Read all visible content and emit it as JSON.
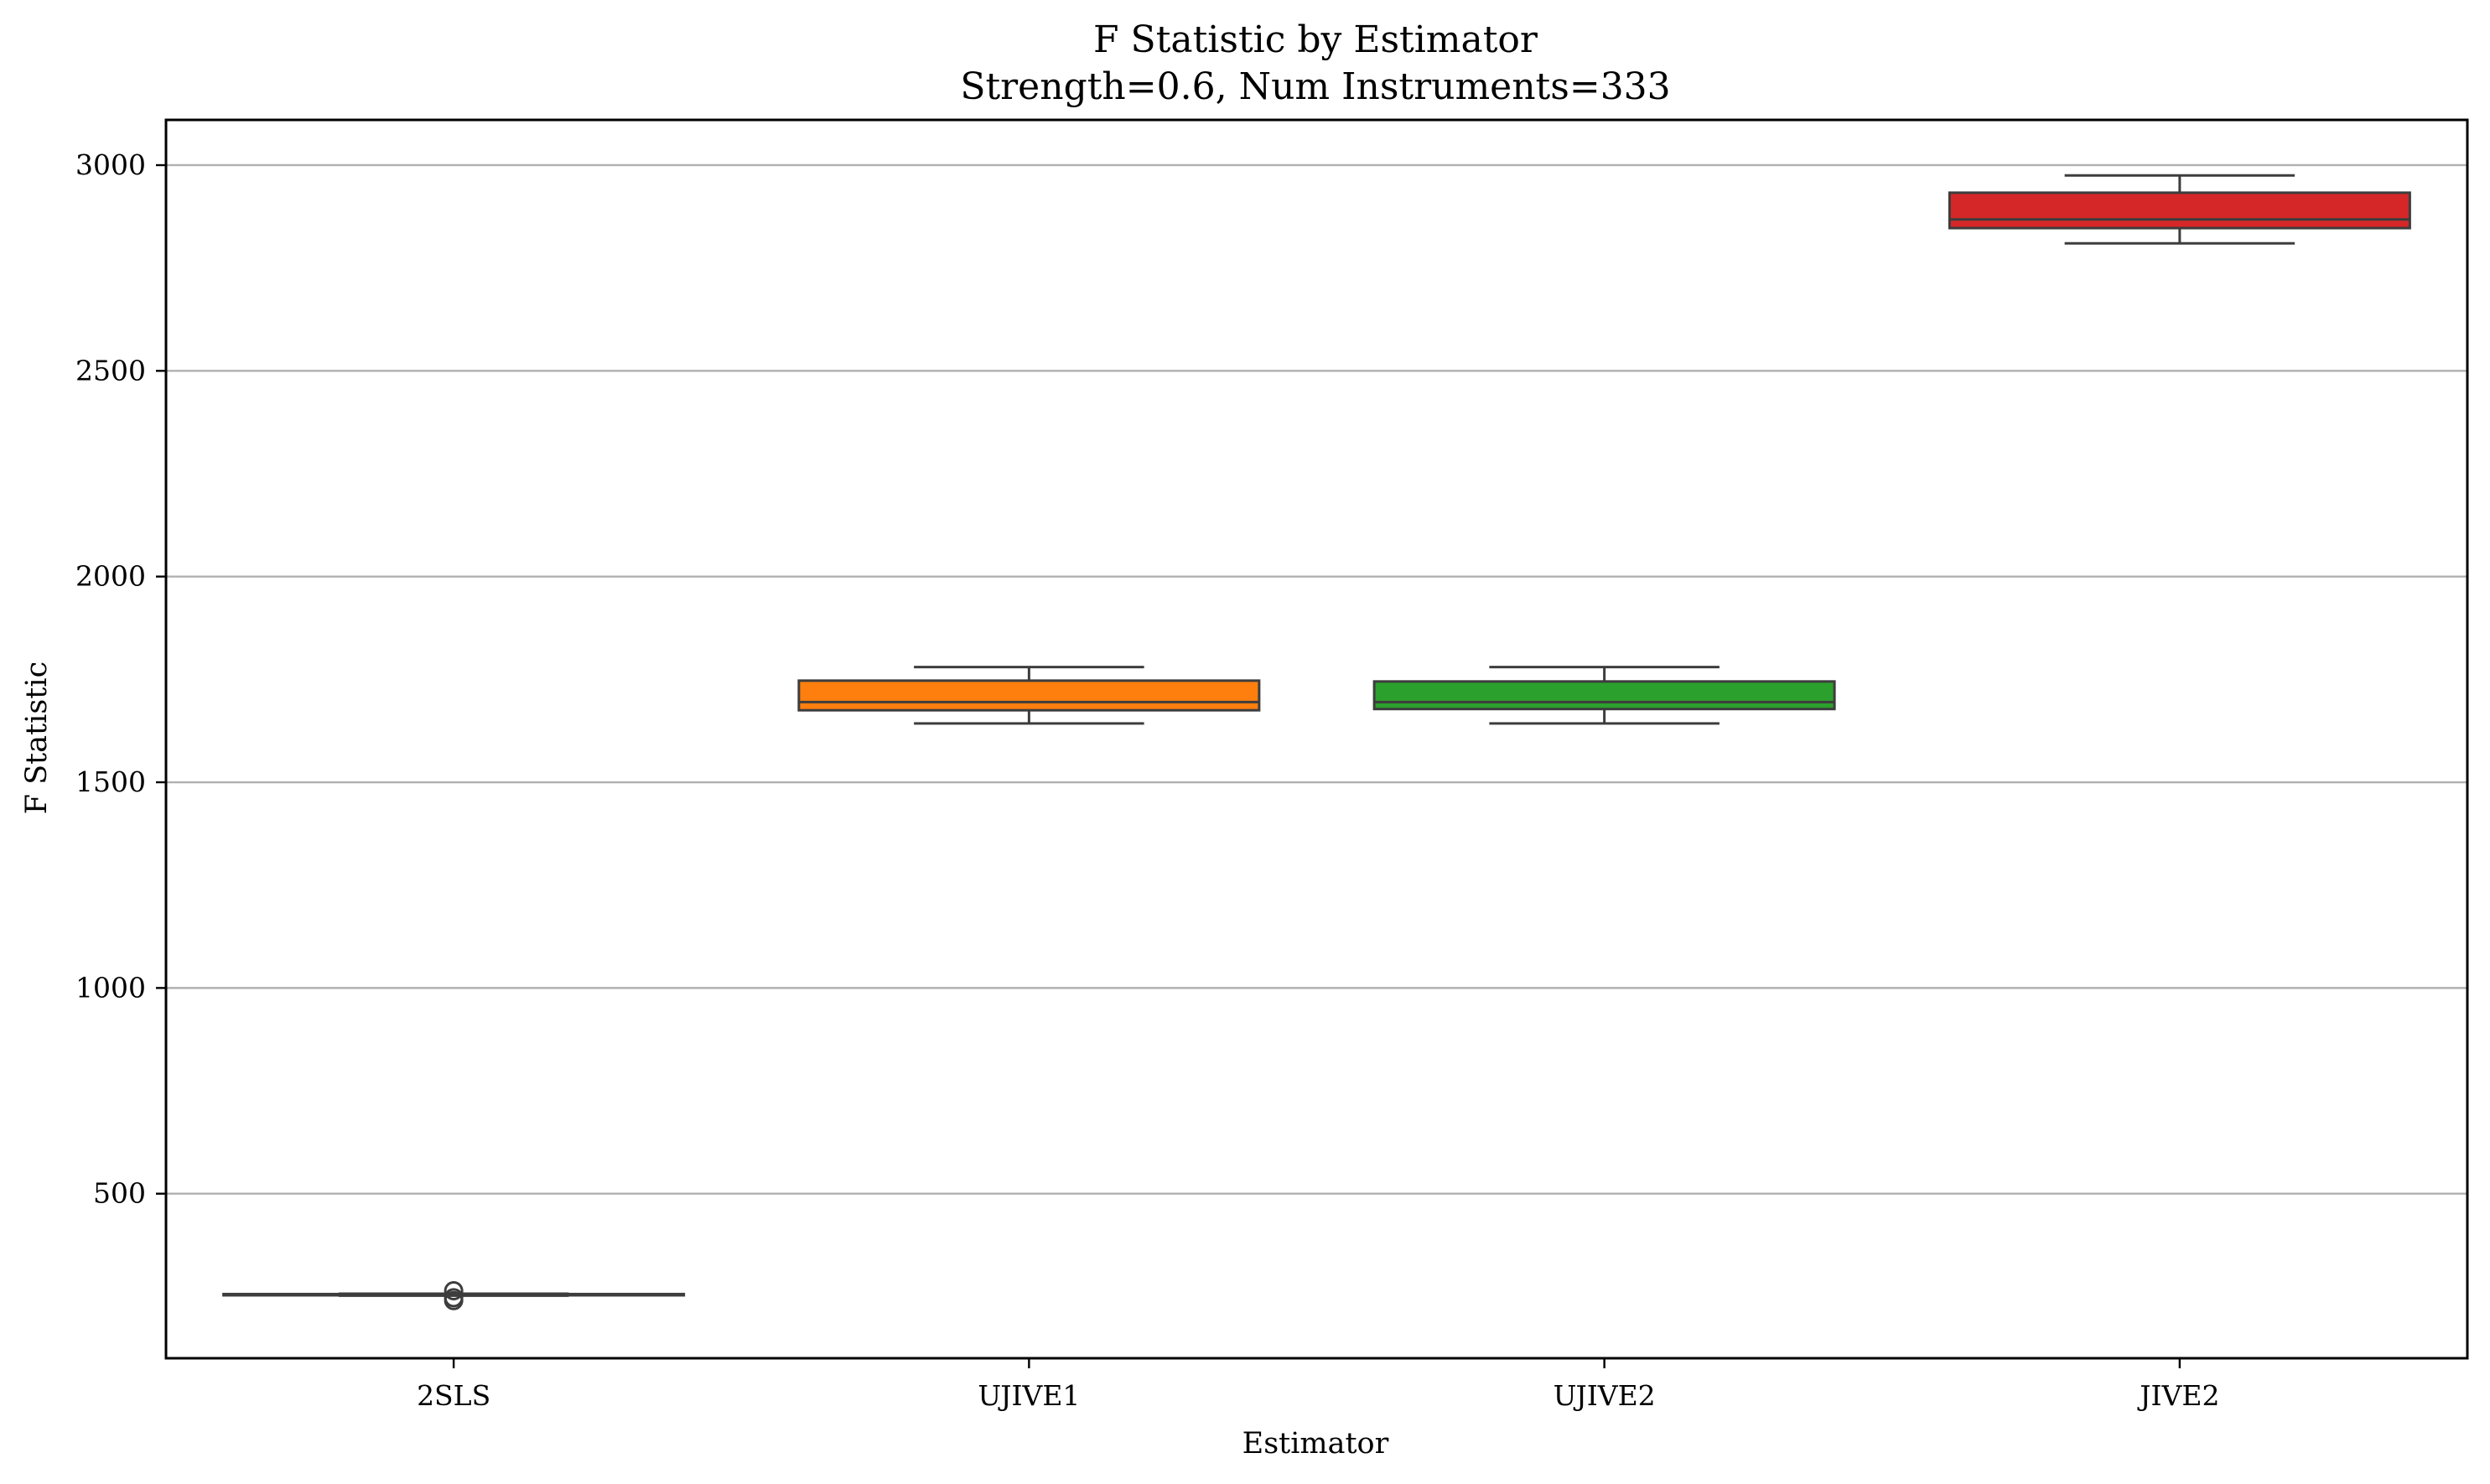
{
  "chart_data": {
    "type": "box",
    "title": "F Statistic by Estimator",
    "subtitle": "Strength=0.6, Num Instruments=333",
    "xlabel": "Estimator",
    "ylabel": "F Statistic",
    "ylim": [
      100,
      3110
    ],
    "yticks": [
      500,
      1000,
      1500,
      2000,
      2500,
      3000
    ],
    "grid": "y",
    "categories": [
      "2SLS",
      "UJIVE1",
      "UJIVE2",
      "JIVE2"
    ],
    "boxes": [
      {
        "category": "2SLS",
        "color": "#1f77b4",
        "whisker_low": 252,
        "q1": 254,
        "median": 255,
        "q3": 256,
        "whisker_high": 257,
        "outliers": [
          264,
          240,
          247
        ]
      },
      {
        "category": "UJIVE1",
        "color": "#ff7f0e",
        "whisker_low": 1643,
        "q1": 1675,
        "median": 1695,
        "q3": 1747,
        "whisker_high": 1780,
        "outliers": []
      },
      {
        "category": "UJIVE2",
        "color": "#2ca02c",
        "whisker_low": 1643,
        "q1": 1678,
        "median": 1695,
        "q3": 1745,
        "whisker_high": 1780,
        "outliers": []
      },
      {
        "category": "JIVE2",
        "color": "#d62728",
        "whisker_low": 2810,
        "q1": 2847,
        "median": 2868,
        "q3": 2933,
        "whisker_high": 2975,
        "outliers": []
      }
    ]
  }
}
